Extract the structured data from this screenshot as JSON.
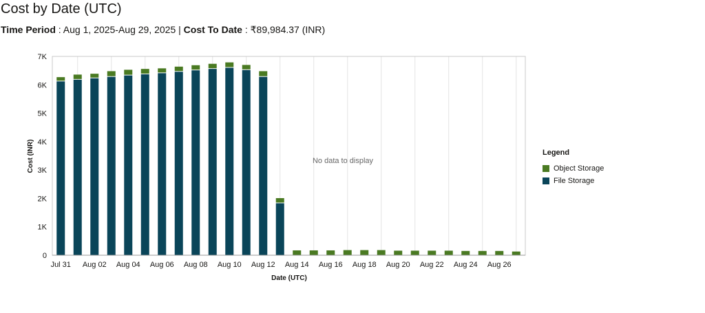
{
  "header": {
    "title": "Cost by Date (UTC)",
    "period_label": "Time Period",
    "period_value": " : Aug 1, 2025-Aug 29, 2025 | ",
    "cost_label": "Cost To Date",
    "cost_value": " : ₹89,984.37 (INR)"
  },
  "chart_data": {
    "type": "bar",
    "stacked": true,
    "xlabel": "Date (UTC)",
    "ylabel": "Cost (INR)",
    "ylim": [
      0,
      7000
    ],
    "yticks": [
      "0",
      "1K",
      "2K",
      "3K",
      "4K",
      "5K",
      "6K",
      "7K"
    ],
    "grid": "vertical",
    "legend_position": "right",
    "legend_title": "Legend",
    "annotation": "No data to display",
    "x_tick_labels": [
      "Jul 31",
      "Aug 02",
      "Aug 04",
      "Aug 06",
      "Aug 08",
      "Aug 10",
      "Aug 12",
      "Aug 14",
      "Aug 16",
      "Aug 18",
      "Aug 20",
      "Aug 22",
      "Aug 24",
      "Aug 26"
    ],
    "categories": [
      "Jul 31",
      "Aug 01",
      "Aug 02",
      "Aug 03",
      "Aug 04",
      "Aug 05",
      "Aug 06",
      "Aug 07",
      "Aug 08",
      "Aug 09",
      "Aug 10",
      "Aug 11",
      "Aug 12",
      "Aug 13",
      "Aug 14",
      "Aug 15",
      "Aug 16",
      "Aug 17",
      "Aug 18",
      "Aug 19",
      "Aug 20",
      "Aug 21",
      "Aug 22",
      "Aug 23",
      "Aug 24",
      "Aug 25",
      "Aug 26",
      "Aug 27"
    ],
    "series": [
      {
        "name": "File Storage",
        "color": "#0a4559",
        "values": [
          6120,
          6180,
          6230,
          6280,
          6330,
          6370,
          6410,
          6460,
          6510,
          6560,
          6600,
          6520,
          6280,
          1830,
          0,
          0,
          0,
          0,
          0,
          0,
          0,
          0,
          0,
          0,
          0,
          0,
          0,
          0
        ]
      },
      {
        "name": "Object Storage",
        "color": "#4a7a22",
        "values": [
          150,
          180,
          160,
          200,
          200,
          190,
          170,
          180,
          180,
          180,
          190,
          180,
          200,
          180,
          170,
          170,
          170,
          180,
          180,
          180,
          160,
          160,
          160,
          160,
          150,
          150,
          150,
          130
        ]
      }
    ]
  }
}
